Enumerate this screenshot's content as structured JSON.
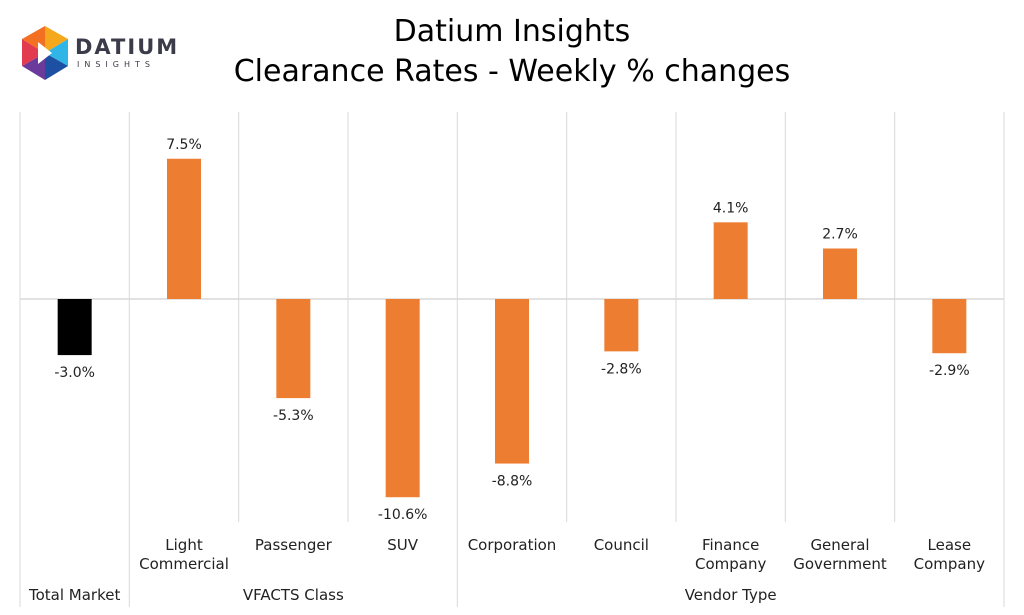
{
  "logo": {
    "word": "DATIUM",
    "sub": "INSIGHTS"
  },
  "chart_data": {
    "type": "bar",
    "title": "Datium Insights",
    "subtitle": "Clearance Rates - Weekly % changes",
    "unit": "%",
    "categories": [
      "Total Market",
      "Light Commercial",
      "Passenger",
      "SUV",
      "Corporation",
      "Council",
      "Finance Company",
      "General Government",
      "Lease Company"
    ],
    "values": [
      -3.0,
      7.5,
      -5.3,
      -10.6,
      -8.8,
      -2.8,
      4.1,
      2.7,
      -2.9
    ],
    "data_labels": [
      "-3.0%",
      "7.5%",
      "-5.3%",
      "-10.6%",
      "-8.8%",
      "-2.8%",
      "4.1%",
      "2.7%",
      "-2.9%"
    ],
    "groups": [
      {
        "name": "Total Market",
        "categories": [
          "Total Market"
        ]
      },
      {
        "name": "VFACTS Class",
        "categories": [
          "Light Commercial",
          "Passenger",
          "SUV"
        ]
      },
      {
        "name": "Vendor Type",
        "categories": [
          "Corporation",
          "Council",
          "Finance Company",
          "General Government",
          "Lease Company"
        ]
      }
    ],
    "category_display": [
      [],
      [
        "Light",
        "Commercial"
      ],
      [
        "Passenger"
      ],
      [
        "SUV"
      ],
      [
        "Corporation"
      ],
      [
        "Council"
      ],
      [
        "Finance",
        "Company"
      ],
      [
        "General",
        "Government"
      ],
      [
        "Lease",
        "Company"
      ]
    ],
    "colors": [
      "#000000",
      "#ED7D31",
      "#ED7D31",
      "#ED7D31",
      "#ED7D31",
      "#ED7D31",
      "#ED7D31",
      "#ED7D31",
      "#ED7D31"
    ],
    "grid": false
  }
}
